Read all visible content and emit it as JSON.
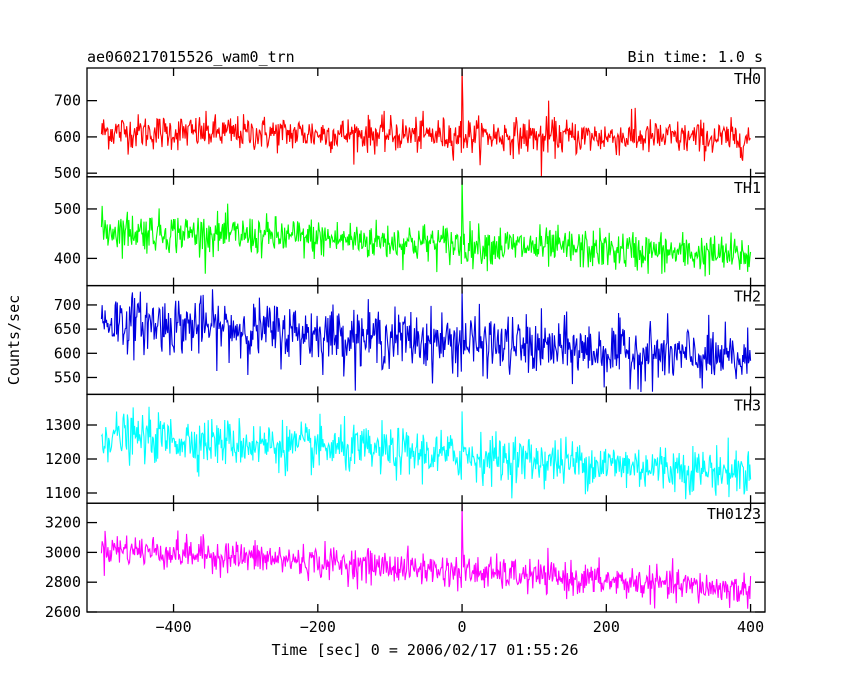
{
  "header": {
    "title": "ae060217015526_wam0_trn",
    "bin_time": "Bin time: 1.0 s"
  },
  "chart_data": {
    "type": "line",
    "xlabel": "Time [sec] 0 = 2006/02/17 01:55:26",
    "ylabel": "Counts/sec",
    "xlim": [
      -520,
      420
    ],
    "x_ticks": [
      -400,
      -200,
      0,
      200,
      400
    ],
    "x_tick_labels": [
      "−400",
      "−200",
      "0",
      "200",
      "400"
    ],
    "x_range_data": [
      -500,
      400
    ],
    "bin_seconds": 1.0,
    "panels": [
      {
        "name": "TH0",
        "color": "#ff0000",
        "ylim": [
          490,
          790
        ],
        "y_ticks": [
          500,
          600,
          700
        ],
        "y_tick_labels": [
          "500",
          "600",
          "700"
        ],
        "trend_start": 615,
        "trend_end": 595,
        "noise": 24,
        "spike_peak": 790,
        "extra_spikes": [
          [
            110,
            480
          ],
          [
            120,
            700
          ],
          [
            240,
            680
          ]
        ]
      },
      {
        "name": "TH1",
        "color": "#00ff00",
        "ylim": [
          345,
          565
        ],
        "y_ticks": [
          400,
          500
        ],
        "y_tick_labels": [
          "400",
          "500"
        ],
        "trend_start": 458,
        "trend_end": 405,
        "noise": 20,
        "spike_peak": 565,
        "extra_spikes": []
      },
      {
        "name": "TH2",
        "color": "#0000e0",
        "ylim": [
          515,
          740
        ],
        "y_ticks": [
          550,
          600,
          650,
          700
        ],
        "y_tick_labels": [
          "550",
          "600",
          "650",
          "700"
        ],
        "trend_start": 668,
        "trend_end": 585,
        "noise": 30,
        "spike_peak": 730,
        "extra_spikes": []
      },
      {
        "name": "TH3",
        "color": "#00ffff",
        "ylim": [
          1070,
          1390
        ],
        "y_ticks": [
          1100,
          1200,
          1300
        ],
        "y_tick_labels": [
          "1100",
          "1200",
          "1300"
        ],
        "trend_start": 1270,
        "trend_end": 1160,
        "noise": 35,
        "spike_peak": 1340,
        "extra_spikes": []
      },
      {
        "name": "TH0123",
        "color": "#ff00ff",
        "ylim": [
          2600,
          3330
        ],
        "y_ticks": [
          2600,
          2800,
          3000,
          3200
        ],
        "y_tick_labels": [
          "2600",
          "2800",
          "3000",
          "3200"
        ],
        "trend_start": 3030,
        "trend_end": 2745,
        "noise": 55,
        "spike_peak": 3330,
        "extra_spikes": []
      }
    ]
  }
}
